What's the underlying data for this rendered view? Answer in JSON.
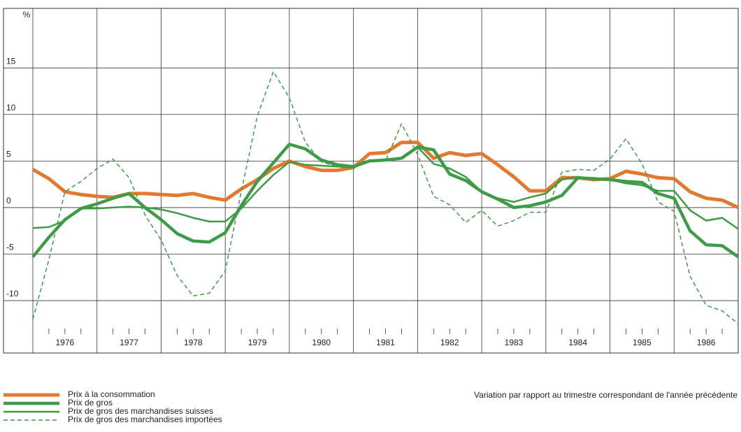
{
  "chart_data": {
    "type": "line",
    "y_label": "%",
    "annotation": "Variation par rapport au trimestre correspondant de l'année précédente",
    "categories": [
      "1976",
      "1977",
      "1978",
      "1979",
      "1980",
      "1981",
      "1982",
      "1983",
      "1984",
      "1985",
      "1986"
    ],
    "x": [
      1976,
      1976.25,
      1976.5,
      1976.75,
      1977,
      1977.25,
      1977.5,
      1977.75,
      1978,
      1978.25,
      1978.5,
      1978.75,
      1979,
      1979.25,
      1979.5,
      1979.75,
      1980,
      1980.25,
      1980.5,
      1980.75,
      1981,
      1981.25,
      1981.5,
      1981.75,
      1982,
      1982.25,
      1982.5,
      1982.75,
      1983,
      1983.25,
      1983.5,
      1983.75,
      1984,
      1984.25,
      1984.5,
      1984.75,
      1985,
      1985.25,
      1985.5,
      1985.75,
      1986,
      1986.25,
      1986.5,
      1986.75,
      1987
    ],
    "xlim": [
      1976,
      1987
    ],
    "ylim": [
      -13,
      21.4
    ],
    "yticks": [
      -10,
      -5,
      0,
      5,
      10,
      15
    ],
    "grid": true,
    "series": [
      {
        "name": "Prix à la consommation",
        "color": "#e2792f",
        "width": 5,
        "dashed": false,
        "values": [
          4.1,
          3.1,
          1.7,
          1.4,
          1.2,
          1.1,
          1.5,
          1.5,
          1.4,
          1.3,
          1.5,
          1.1,
          0.8,
          2.0,
          3.0,
          4.2,
          5.0,
          4.4,
          4.0,
          4.0,
          4.3,
          5.8,
          5.9,
          7.0,
          7.0,
          5.3,
          5.9,
          5.6,
          5.8,
          4.6,
          3.3,
          1.8,
          1.8,
          3.2,
          3.2,
          3.0,
          3.1,
          3.9,
          3.6,
          3.2,
          3.1,
          1.7,
          1.0,
          0.8,
          0.0
        ]
      },
      {
        "name": "Prix de gros",
        "color": "#3d9c45",
        "width": 4.5,
        "dashed": false,
        "values": [
          -5.3,
          -3.2,
          -1.3,
          -0.1,
          0.4,
          1.0,
          1.5,
          0.0,
          -1.3,
          -2.8,
          -3.6,
          -3.7,
          -2.7,
          0.2,
          2.8,
          4.8,
          6.8,
          6.3,
          5.1,
          4.6,
          4.4,
          5.0,
          5.1,
          5.3,
          6.5,
          6.2,
          3.6,
          2.9,
          1.7,
          0.9,
          0.0,
          0.2,
          0.6,
          1.3,
          3.2,
          3.1,
          3.0,
          2.8,
          2.7,
          1.5,
          1.0,
          -2.5,
          -4.0,
          -4.1,
          -5.3
        ]
      },
      {
        "name": "Prix de gros des marchandises suisses",
        "color": "#3d9c45",
        "width": 2.5,
        "dashed": false,
        "values": [
          -2.2,
          -2.1,
          -1.4,
          -0.1,
          -0.1,
          0.0,
          0.1,
          0.0,
          -0.2,
          -0.6,
          -1.1,
          -1.5,
          -1.5,
          -0.1,
          1.8,
          3.5,
          4.9,
          4.6,
          4.5,
          4.4,
          4.3,
          5.0,
          5.2,
          5.3,
          6.5,
          4.7,
          4.2,
          3.3,
          1.7,
          1.0,
          0.6,
          1.1,
          1.5,
          3.0,
          3.3,
          3.0,
          3.0,
          2.6,
          2.4,
          1.8,
          1.8,
          -0.3,
          -1.4,
          -1.1,
          -2.3
        ]
      },
      {
        "name": "Prix de gros des marchandises importées",
        "color": "#3d9c45",
        "width": 1.5,
        "dashed": true,
        "values": [
          -12.0,
          -5.6,
          1.7,
          2.8,
          4.2,
          5.2,
          3.2,
          -0.8,
          -3.5,
          -7.3,
          -9.5,
          -9.2,
          -6.8,
          1.7,
          9.8,
          14.6,
          11.8,
          7.0,
          4.9,
          4.4,
          4.5,
          4.9,
          5.0,
          9.0,
          5.7,
          1.2,
          0.3,
          -1.6,
          -0.3,
          -2.0,
          -1.4,
          -0.5,
          -0.5,
          3.8,
          4.1,
          4.0,
          5.2,
          7.4,
          4.7,
          0.6,
          -0.4,
          -7.4,
          -10.5,
          -11.1,
          -12.5
        ]
      }
    ]
  }
}
